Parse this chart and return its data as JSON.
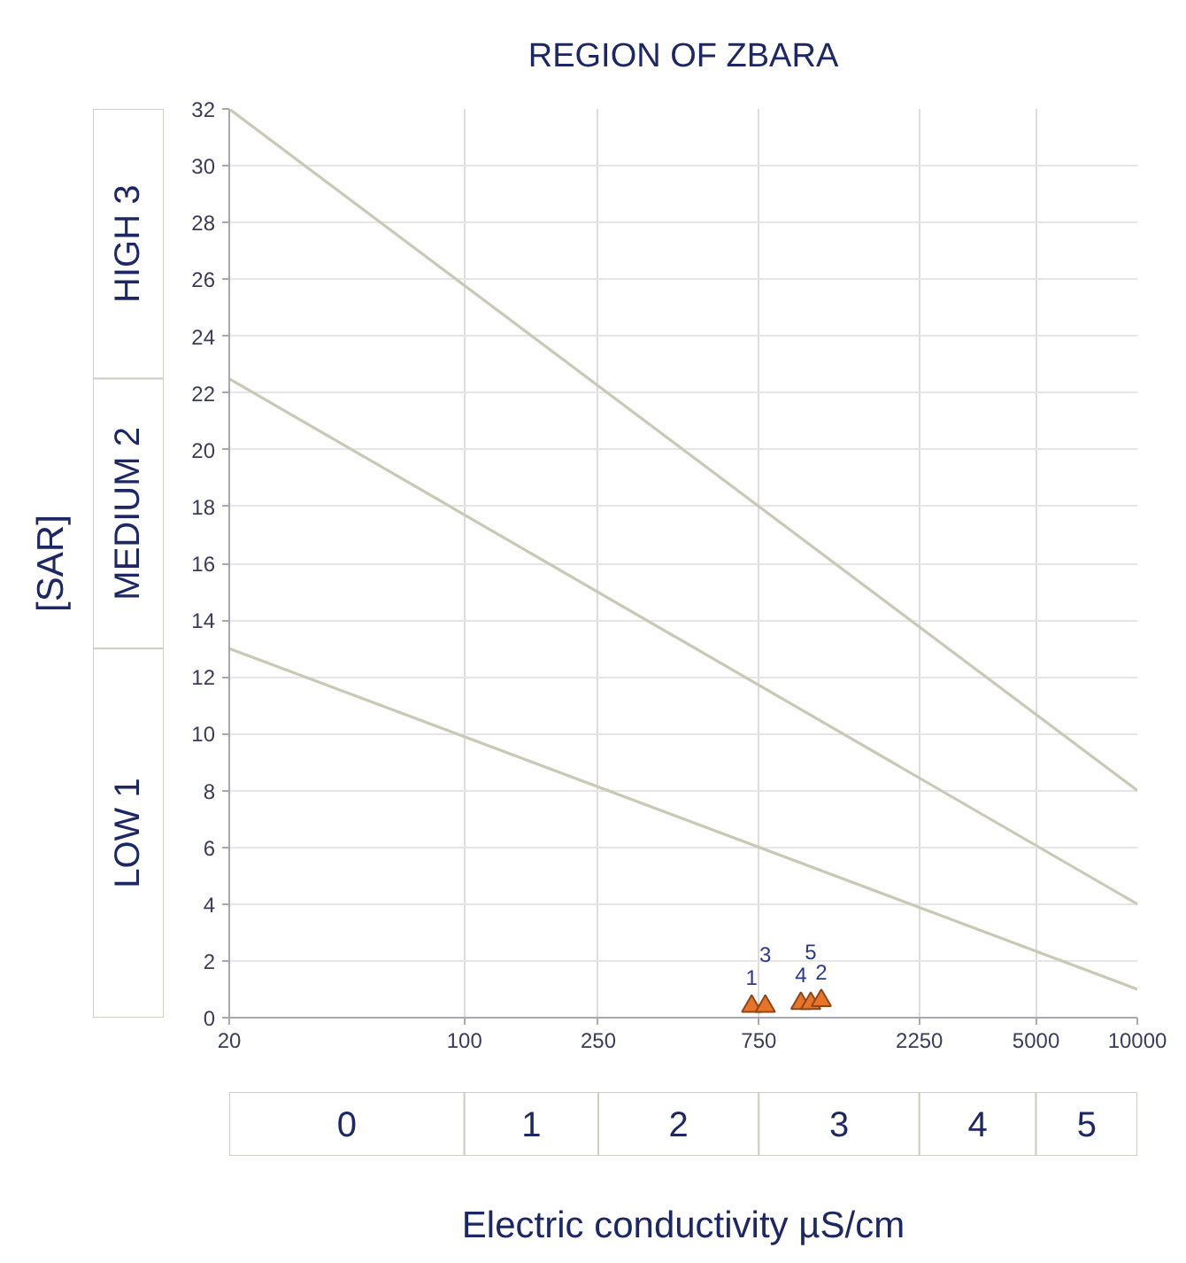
{
  "chart_data": {
    "type": "scatter",
    "title": "REGION OF ZBARA",
    "xlabel": "Electric conductivity µS/cm",
    "ylabel": "[SAR]",
    "log": "x",
    "xlim": [
      20,
      10000
    ],
    "ylim": [
      0,
      32
    ],
    "xticks": [
      20,
      100,
      250,
      750,
      2250,
      5000,
      10000
    ],
    "yticks": [
      0,
      2,
      4,
      6,
      8,
      10,
      12,
      14,
      16,
      18,
      20,
      22,
      24,
      26,
      28,
      30,
      32
    ],
    "grid": true,
    "marker": "triangle",
    "series": [
      {
        "type": "line",
        "color": "#c9c9b6",
        "marker": "none",
        "x": [
          20,
          10000
        ],
        "values": [
          32,
          8
        ]
      },
      {
        "type": "line",
        "color": "#c9c9b6",
        "marker": "none",
        "x": [
          20,
          10000
        ],
        "values": [
          22.5,
          4
        ]
      },
      {
        "type": "line",
        "color": "#c9c9b6",
        "marker": "none",
        "x": [
          20,
          10000
        ],
        "values": [
          13,
          1
        ]
      },
      {
        "color": "#e8742a",
        "x": [
          714,
          784,
          1000,
          1070,
          1150
        ],
        "values": [
          0.4,
          0.4,
          0.5,
          0.5,
          0.6
        ]
      }
    ],
    "annotations": [
      "HIGH 3",
      "MEDIUM 2",
      "LOW 1",
      "0",
      "1",
      "2",
      "3",
      "4",
      "5",
      {
        "text": "1",
        "x": 714,
        "y": 0.4
      },
      {
        "text": "3",
        "x": 784,
        "y": 0.4
      },
      {
        "text": "4",
        "x": 1000,
        "y": 0.5
      },
      {
        "text": "5",
        "x": 1070,
        "y": 0.5
      },
      {
        "text": "2",
        "x": 1150,
        "y": 0.6
      }
    ]
  }
}
